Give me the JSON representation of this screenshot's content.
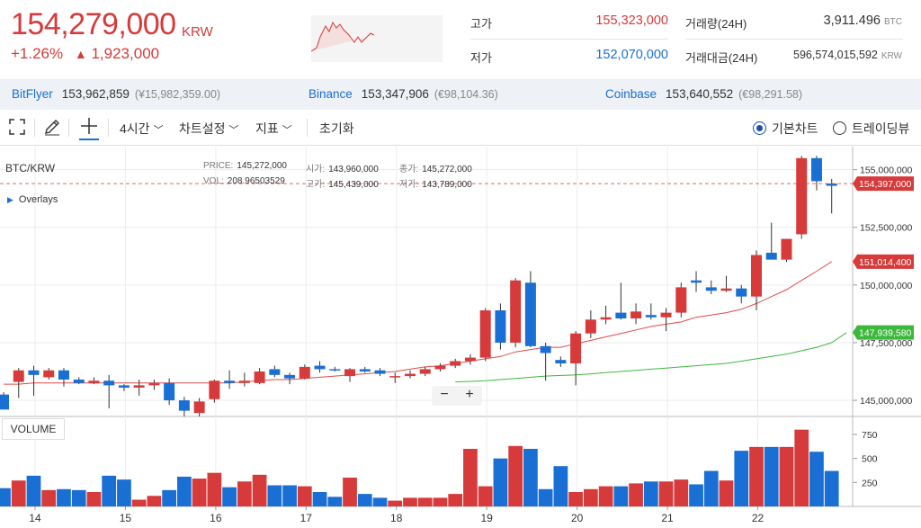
{
  "header": {
    "price": "154,279,000",
    "price_unit": "KRW",
    "change_pct": "+1.26%",
    "change_abs": "1,923,000",
    "high_label": "고가",
    "high_value": "155,323,000",
    "low_label": "저가",
    "low_value": "152,070,000",
    "volume_label": "거래량(24H)",
    "volume_value": "3,911.496",
    "volume_unit": "BTC",
    "amount_label": "거래대금(24H)",
    "amount_value": "596,574,015,592",
    "amount_unit": "KRW"
  },
  "exchanges": [
    {
      "name": "BitFlyer",
      "price": "153,962,859",
      "fx": "(¥15,982,359.00)"
    },
    {
      "name": "Binance",
      "price": "153,347,906",
      "fx": "(€98,104.36)"
    },
    {
      "name": "Coinbase",
      "price": "153,640,552",
      "fx": "(€98,291.58)"
    }
  ],
  "toolbar": {
    "interval": "4시간",
    "chart_settings": "차트설정",
    "indicators": "지표",
    "reset": "초기화",
    "basic_chart": "기본차트",
    "tradingview": "트레이딩뷰"
  },
  "chart": {
    "symbol": "BTC/KRW",
    "overlays": "Overlays",
    "volume_label": "VOLUME",
    "ohlc": {
      "price_k": "PRICE:",
      "price_v": "145,272,000",
      "open_k": "시가:",
      "open_v": "143,960,000",
      "close_k": "종가:",
      "close_v": "145,272,000",
      "vol_k": "VOL:",
      "vol_v": "208.96503529",
      "high_k": "고가:",
      "high_v": "145,439,000",
      "low_k": "저가:",
      "low_v": "143,789,000"
    },
    "zoom_minus": "−",
    "zoom_plus": "+"
  },
  "colors": {
    "up": "#d63a3a",
    "down": "#1a6fd4",
    "ma_short": "#e04a4a",
    "ma_long": "#3cb83c"
  },
  "chart_data": {
    "type": "candlestick",
    "symbol": "BTC/KRW",
    "interval": "4h",
    "x_ticks": [
      "14",
      "15",
      "16",
      "17",
      "18",
      "19",
      "20",
      "21",
      "22"
    ],
    "y_ticks": [
      "155,000,000",
      "152,500,000",
      "150,000,000",
      "147,500,000",
      "145,000,000"
    ],
    "y_tick_values": [
      155000000,
      152500000,
      150000000,
      147500000,
      145000000
    ],
    "y_range": [
      144300000,
      156000000
    ],
    "volume_ticks": [
      "750",
      "500",
      "250"
    ],
    "volume_tick_values": [
      750,
      500,
      250
    ],
    "volume_range": [
      0,
      900
    ],
    "price_labels": [
      {
        "text": "154,397,000",
        "value": 154397000,
        "color": "#d63a3a"
      },
      {
        "text": "151,014,400",
        "value": 151014400,
        "color": "#d63a3a"
      },
      {
        "text": "147,939,580",
        "value": 147939580,
        "color": "#3cb83c"
      }
    ],
    "day_start_index": [
      2,
      8,
      14,
      20,
      26,
      32,
      38,
      44,
      50
    ],
    "candles": [
      {
        "o": 145250000,
        "h": 145350000,
        "l": 144600000,
        "c": 144600000,
        "v": 190
      },
      {
        "o": 145800000,
        "h": 146400000,
        "l": 145100000,
        "c": 146300000,
        "v": 270
      },
      {
        "o": 146300000,
        "h": 146500000,
        "l": 145200000,
        "c": 146100000,
        "v": 320
      },
      {
        "o": 146000000,
        "h": 146400000,
        "l": 145900000,
        "c": 146300000,
        "v": 170
      },
      {
        "o": 146300000,
        "h": 146400000,
        "l": 145600000,
        "c": 145900000,
        "v": 180
      },
      {
        "o": 145900000,
        "h": 146000000,
        "l": 145700000,
        "c": 145750000,
        "v": 170
      },
      {
        "o": 145750000,
        "h": 146000000,
        "l": 145700000,
        "c": 145850000,
        "v": 150
      },
      {
        "o": 145850000,
        "h": 146100000,
        "l": 144650000,
        "c": 145650000,
        "v": 320
      },
      {
        "o": 145650000,
        "h": 145700000,
        "l": 145400000,
        "c": 145550000,
        "v": 280
      },
      {
        "o": 145550000,
        "h": 145900000,
        "l": 145200000,
        "c": 145650000,
        "v": 70
      },
      {
        "o": 145650000,
        "h": 145900000,
        "l": 145450000,
        "c": 145750000,
        "v": 110
      },
      {
        "o": 145750000,
        "h": 145950000,
        "l": 144800000,
        "c": 145000000,
        "v": 170
      },
      {
        "o": 145000000,
        "h": 145150000,
        "l": 144300000,
        "c": 144550000,
        "v": 310
      },
      {
        "o": 144450000,
        "h": 145100000,
        "l": 144300000,
        "c": 144950000,
        "v": 290
      },
      {
        "o": 145050000,
        "h": 145900000,
        "l": 144900000,
        "c": 145850000,
        "v": 350
      },
      {
        "o": 145850000,
        "h": 146300000,
        "l": 145500000,
        "c": 145750000,
        "v": 200
      },
      {
        "o": 145750000,
        "h": 146200000,
        "l": 145600000,
        "c": 145850000,
        "v": 260
      },
      {
        "o": 145750000,
        "h": 146400000,
        "l": 145700000,
        "c": 146250000,
        "v": 330
      },
      {
        "o": 146350000,
        "h": 146500000,
        "l": 146000000,
        "c": 146100000,
        "v": 220
      },
      {
        "o": 146100000,
        "h": 146200000,
        "l": 145700000,
        "c": 145950000,
        "v": 220
      },
      {
        "o": 145950000,
        "h": 146550000,
        "l": 145900000,
        "c": 146450000,
        "v": 210
      },
      {
        "o": 146500000,
        "h": 146700000,
        "l": 146200000,
        "c": 146350000,
        "v": 150
      },
      {
        "o": 146350000,
        "h": 146450000,
        "l": 146250000,
        "c": 146300000,
        "v": 100
      },
      {
        "o": 146050000,
        "h": 146400000,
        "l": 145800000,
        "c": 146350000,
        "v": 300
      },
      {
        "o": 146350000,
        "h": 146450000,
        "l": 146200000,
        "c": 146250000,
        "v": 130
      },
      {
        "o": 146300000,
        "h": 146400000,
        "l": 146050000,
        "c": 146150000,
        "v": 90
      },
      {
        "o": 146000000,
        "h": 146200000,
        "l": 145750000,
        "c": 146050000,
        "v": 60
      },
      {
        "o": 146050000,
        "h": 146300000,
        "l": 145950000,
        "c": 146150000,
        "v": 90
      },
      {
        "o": 146150000,
        "h": 146450000,
        "l": 146050000,
        "c": 146350000,
        "v": 90
      },
      {
        "o": 146350000,
        "h": 146600000,
        "l": 146250000,
        "c": 146500000,
        "v": 90
      },
      {
        "o": 146500000,
        "h": 146800000,
        "l": 146400000,
        "c": 146700000,
        "v": 130
      },
      {
        "o": 146700000,
        "h": 147000000,
        "l": 146550000,
        "c": 146850000,
        "v": 600
      },
      {
        "o": 146850000,
        "h": 149000000,
        "l": 146700000,
        "c": 148900000,
        "v": 210
      },
      {
        "o": 148900000,
        "h": 149200000,
        "l": 147200000,
        "c": 147500000,
        "v": 500
      },
      {
        "o": 147500000,
        "h": 150300000,
        "l": 147300000,
        "c": 150200000,
        "v": 630
      },
      {
        "o": 150100000,
        "h": 150600000,
        "l": 147300000,
        "c": 147350000,
        "v": 600
      },
      {
        "o": 147350000,
        "h": 147500000,
        "l": 145850000,
        "c": 147050000,
        "v": 180
      },
      {
        "o": 146750000,
        "h": 146900000,
        "l": 146450000,
        "c": 146600000,
        "v": 420
      },
      {
        "o": 146600000,
        "h": 148000000,
        "l": 145650000,
        "c": 147900000,
        "v": 150
      },
      {
        "o": 147900000,
        "h": 148900000,
        "l": 147700000,
        "c": 148500000,
        "v": 180
      },
      {
        "o": 148500000,
        "h": 149100000,
        "l": 148300000,
        "c": 148600000,
        "v": 210
      },
      {
        "o": 148800000,
        "h": 150100000,
        "l": 148500000,
        "c": 148550000,
        "v": 210
      },
      {
        "o": 148550000,
        "h": 149200000,
        "l": 148300000,
        "c": 148850000,
        "v": 240
      },
      {
        "o": 148700000,
        "h": 149200000,
        "l": 148500000,
        "c": 148600000,
        "v": 260
      },
      {
        "o": 148600000,
        "h": 149000000,
        "l": 148000000,
        "c": 148800000,
        "v": 260
      },
      {
        "o": 148800000,
        "h": 150100000,
        "l": 148600000,
        "c": 149900000,
        "v": 280
      },
      {
        "o": 150200000,
        "h": 150600000,
        "l": 149700000,
        "c": 150100000,
        "v": 230
      },
      {
        "o": 149900000,
        "h": 150200000,
        "l": 149600000,
        "c": 149750000,
        "v": 370
      },
      {
        "o": 149750000,
        "h": 150400000,
        "l": 149700000,
        "c": 149850000,
        "v": 270
      },
      {
        "o": 149850000,
        "h": 150000000,
        "l": 149200000,
        "c": 149500000,
        "v": 580
      },
      {
        "o": 149500000,
        "h": 151500000,
        "l": 148900000,
        "c": 151300000,
        "v": 620
      },
      {
        "o": 151400000,
        "h": 152700000,
        "l": 151200000,
        "c": 151100000,
        "v": 620
      },
      {
        "o": 151100000,
        "h": 152000000,
        "l": 151000000,
        "c": 152000000,
        "v": 620
      },
      {
        "o": 152200000,
        "h": 155600000,
        "l": 152000000,
        "c": 155500000,
        "v": 800
      },
      {
        "o": 155500000,
        "h": 155600000,
        "l": 154100000,
        "c": 154500000,
        "v": 570
      },
      {
        "o": 154400000,
        "h": 154600000,
        "l": 153100000,
        "c": 154300000,
        "v": 370
      }
    ],
    "ma_short": [
      145700000,
      145700000,
      145750000,
      145750000,
      145750000,
      145750000,
      145750000,
      145750000,
      145750000,
      145750000,
      145750000,
      145750000,
      145750000,
      145750000,
      145750000,
      145750000,
      145800000,
      145850000,
      145900000,
      145900000,
      145950000,
      146000000,
      146050000,
      146100000,
      146150000,
      146200000,
      146250000,
      146350000,
      146450000,
      146500000,
      146600000,
      146700000,
      146800000,
      146900000,
      147100000,
      147200000,
      147300000,
      147300000,
      147450000,
      147600000,
      147750000,
      147900000,
      148050000,
      148200000,
      148300000,
      148400000,
      148600000,
      148700000,
      148800000,
      148950000,
      149200000,
      149500000,
      149800000,
      150200000,
      150600000,
      151014400
    ],
    "ma_long_start": 30,
    "ma_long": [
      145800000,
      145820000,
      145850000,
      145900000,
      145950000,
      146000000,
      146050000,
      146080000,
      146100000,
      146150000,
      146200000,
      146250000,
      146300000,
      146350000,
      146400000,
      146450000,
      146500000,
      146550000,
      146600000,
      146700000,
      146800000,
      146900000,
      147000000,
      147150000,
      147300000,
      147500000,
      147939580
    ]
  }
}
